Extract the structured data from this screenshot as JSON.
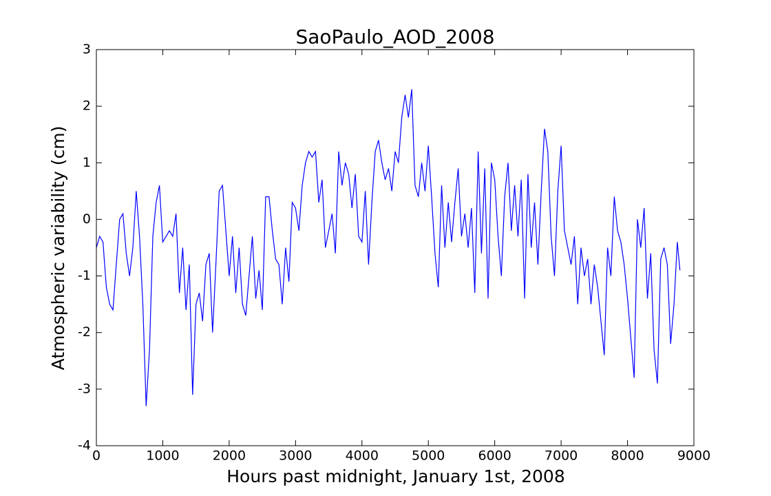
{
  "chart_data": {
    "type": "line",
    "title": "SaoPaulo_AOD_2008",
    "x_label": "Hours past midnight, January 1st, 2008",
    "y_label": "Atmospheric variability (cm)",
    "xlim": [
      0,
      9000
    ],
    "xticks": [
      0,
      1000,
      2000,
      3000,
      4000,
      5000,
      6000,
      7000,
      8000,
      9000
    ],
    "ylim": [
      -4,
      3
    ],
    "yticks": [
      -4,
      -3,
      -2,
      -1,
      0,
      1,
      2,
      3
    ],
    "x": [
      0,
      50,
      100,
      150,
      200,
      250,
      300,
      350,
      400,
      450,
      500,
      550,
      600,
      650,
      700,
      750,
      800,
      850,
      900,
      950,
      1000,
      1050,
      1100,
      1150,
      1200,
      1250,
      1300,
      1350,
      1400,
      1450,
      1500,
      1550,
      1600,
      1650,
      1700,
      1750,
      1800,
      1850,
      1900,
      1950,
      2000,
      2050,
      2100,
      2150,
      2200,
      2250,
      2300,
      2350,
      2400,
      2450,
      2500,
      2550,
      2600,
      2650,
      2700,
      2750,
      2800,
      2850,
      2900,
      2950,
      3000,
      3050,
      3100,
      3150,
      3200,
      3250,
      3300,
      3350,
      3400,
      3450,
      3500,
      3550,
      3600,
      3650,
      3700,
      3750,
      3800,
      3850,
      3900,
      3950,
      4000,
      4050,
      4100,
      4150,
      4200,
      4250,
      4300,
      4350,
      4400,
      4450,
      4500,
      4550,
      4600,
      4650,
      4700,
      4750,
      4800,
      4850,
      4900,
      4950,
      5000,
      5050,
      5100,
      5150,
      5200,
      5250,
      5300,
      5350,
      5400,
      5450,
      5500,
      5550,
      5600,
      5650,
      5700,
      5750,
      5800,
      5850,
      5900,
      5950,
      6000,
      6050,
      6100,
      6150,
      6200,
      6250,
      6300,
      6350,
      6400,
      6450,
      6500,
      6550,
      6600,
      6650,
      6700,
      6750,
      6800,
      6850,
      6900,
      6950,
      7000,
      7050,
      7100,
      7150,
      7200,
      7250,
      7300,
      7350,
      7400,
      7450,
      7500,
      7550,
      7600,
      7650,
      7700,
      7750,
      7800,
      7850,
      7900,
      7950,
      8000,
      8050,
      8100,
      8150,
      8200,
      8250,
      8300,
      8350,
      8400,
      8450,
      8500,
      8550,
      8600,
      8650,
      8700,
      8750,
      8790
    ],
    "series": [
      {
        "name": "AOD",
        "color": "#0000ff",
        "values": [
          -0.5,
          -0.3,
          -0.4,
          -1.2,
          -1.5,
          -1.6,
          -0.8,
          0.0,
          0.1,
          -0.6,
          -1.0,
          -0.5,
          0.5,
          -0.3,
          -1.5,
          -3.3,
          -2.3,
          -0.3,
          0.3,
          0.6,
          -0.4,
          -0.3,
          -0.2,
          -0.3,
          0.1,
          -1.3,
          -0.5,
          -1.6,
          -0.8,
          -3.1,
          -1.5,
          -1.3,
          -1.8,
          -0.8,
          -0.6,
          -2.0,
          -0.8,
          0.5,
          0.6,
          -0.2,
          -1.0,
          -0.3,
          -1.3,
          -0.5,
          -1.5,
          -1.7,
          -1.0,
          -0.3,
          -1.4,
          -0.9,
          -1.6,
          0.4,
          0.4,
          -0.2,
          -0.7,
          -0.8,
          -1.5,
          -0.5,
          -1.1,
          0.3,
          0.2,
          -0.2,
          0.6,
          1.0,
          1.2,
          1.1,
          1.2,
          0.3,
          0.7,
          -0.5,
          -0.2,
          0.1,
          -0.6,
          1.2,
          0.6,
          1.0,
          0.8,
          0.2,
          0.8,
          -0.3,
          -0.4,
          0.5,
          -0.8,
          0.3,
          1.2,
          1.4,
          1.0,
          0.7,
          0.9,
          0.5,
          1.2,
          1.0,
          1.8,
          2.2,
          1.8,
          2.3,
          0.6,
          0.4,
          1.0,
          0.5,
          1.3,
          0.4,
          -0.6,
          -1.2,
          0.6,
          -0.5,
          0.3,
          -0.4,
          0.3,
          0.9,
          -0.3,
          0.1,
          -0.5,
          0.2,
          -1.3,
          1.2,
          -0.6,
          0.9,
          -1.4,
          1.0,
          0.7,
          -0.3,
          -1.0,
          0.4,
          1.0,
          -0.2,
          0.6,
          -0.3,
          0.7,
          -1.4,
          0.8,
          -0.5,
          0.3,
          -0.8,
          0.5,
          1.6,
          1.2,
          -0.3,
          -1.0,
          0.5,
          1.3,
          -0.2,
          -0.5,
          -0.8,
          -0.3,
          -1.5,
          -0.5,
          -1.0,
          -0.7,
          -1.5,
          -0.8,
          -1.2,
          -1.8,
          -2.4,
          -0.5,
          -1.0,
          0.4,
          -0.2,
          -0.4,
          -0.8,
          -1.4,
          -2.1,
          -2.8,
          0.0,
          -0.5,
          0.2,
          -1.4,
          -0.6,
          -2.3,
          -2.9,
          -0.7,
          -0.5,
          -0.8,
          -2.2,
          -1.5,
          -0.4,
          -0.9
        ]
      }
    ]
  }
}
